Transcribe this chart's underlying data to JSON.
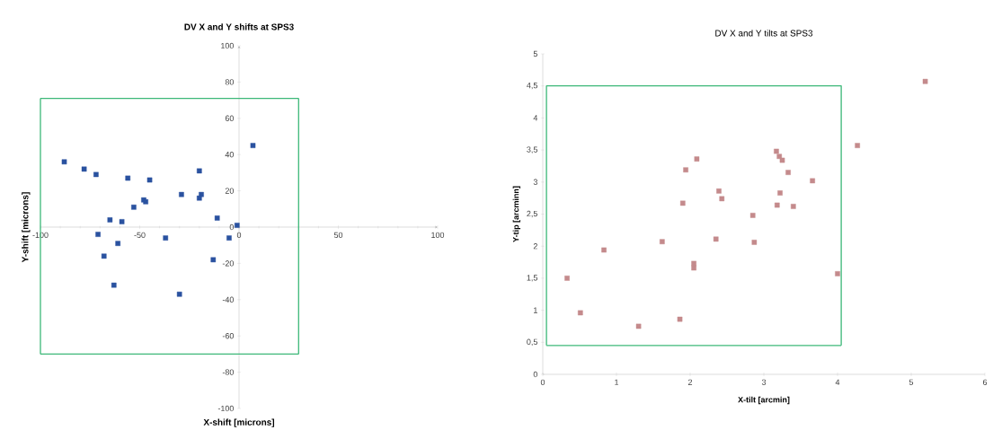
{
  "chart_data": [
    {
      "type": "scatter",
      "title": "DV X and Y shifts at SPS3",
      "xlabel": "X-shift  [microns]",
      "ylabel": "Y-shift  [microns]",
      "xlim": [
        -100,
        100
      ],
      "ylim": [
        -100,
        100
      ],
      "xticks": [
        -100,
        -50,
        0,
        50,
        100
      ],
      "yticks": [
        -100,
        -80,
        -60,
        -40,
        -20,
        0,
        20,
        40,
        60,
        80,
        100
      ],
      "series": [
        {
          "type": "scatter",
          "marker": "square",
          "color": "#2a52a0",
          "x": [
            -88,
            -78,
            -72,
            -56,
            -45,
            -48,
            -47,
            -53,
            -65,
            -59,
            -71,
            -61,
            -68,
            -63,
            -37,
            -29,
            -30,
            -20,
            -19,
            -20,
            -11,
            -5,
            -1,
            -13,
            7
          ],
          "values": [
            36,
            32,
            29,
            27,
            26,
            15,
            14,
            11,
            4,
            3,
            -4,
            -9,
            -16,
            -32,
            -6,
            18,
            -37,
            31,
            18,
            16,
            5,
            -6,
            1,
            -18,
            45
          ]
        },
        {
          "type": "line",
          "marker": "none",
          "line_style": "solid",
          "color": "#3cb878",
          "x": [
            -100,
            30
          ],
          "values": [
            71,
            71
          ]
        },
        {
          "type": "line",
          "marker": "none",
          "line_style": "solid",
          "color": "#3cb878",
          "x": [
            -100,
            30
          ],
          "values": [
            -70,
            -70
          ]
        },
        {
          "type": "line",
          "marker": "none",
          "line_style": "solid",
          "color": "#3cb878",
          "x": [
            -100,
            -100
          ],
          "values": [
            -70,
            71
          ]
        },
        {
          "type": "line",
          "marker": "none",
          "line_style": "solid",
          "color": "#3cb878",
          "x": [
            30,
            30
          ],
          "values": [
            -70,
            71
          ]
        }
      ]
    },
    {
      "type": "scatter",
      "title": "DV X and Y tilts at SPS3",
      "xlabel": "X-tilt  [arcmin]",
      "ylabel": "Y-tip  [arcminn]",
      "xlim": [
        0,
        6
      ],
      "ylim": [
        0,
        5
      ],
      "xticks": [
        0,
        1,
        2,
        3,
        4,
        5,
        6
      ],
      "yticks": [
        0,
        {
          "value": 0.5,
          "label": "0,5"
        },
        1,
        {
          "value": 1.5,
          "label": "1,5"
        },
        2,
        {
          "value": 2.5,
          "label": "2,5"
        },
        3,
        {
          "value": 3.5,
          "label": "3,5"
        },
        4,
        {
          "value": 4.5,
          "label": "4,5"
        },
        5
      ],
      "series": [
        {
          "type": "scatter",
          "marker": "square",
          "color": "#c48a8c",
          "x": [
            0.33,
            0.51,
            0.83,
            1.3,
            1.62,
            1.86,
            1.9,
            1.94,
            2.05,
            2.05,
            2.09,
            2.35,
            2.39,
            2.43,
            2.85,
            2.87,
            3.17,
            3.21,
            3.25,
            3.18,
            3.22,
            3.33,
            3.4,
            3.66,
            4.0,
            4.27,
            5.19
          ],
          "values": [
            1.5,
            0.96,
            1.94,
            0.75,
            2.07,
            0.86,
            2.67,
            3.19,
            1.73,
            1.66,
            3.36,
            2.11,
            2.86,
            2.74,
            2.48,
            2.06,
            3.48,
            3.4,
            3.34,
            2.64,
            2.83,
            3.15,
            2.62,
            3.02,
            1.57,
            3.57,
            4.57
          ]
        },
        {
          "type": "line",
          "marker": "none",
          "line_style": "solid",
          "color": "#3cb878",
          "x": [
            0.05,
            0.05,
            4.05,
            4.05
          ],
          "values": [
            0.45,
            4.5,
            4.5,
            0.45
          ]
        },
        {
          "type": "line",
          "marker": "none",
          "line_style": "solid",
          "color": "#3cb878",
          "x": [
            0.05,
            4.05
          ],
          "values": [
            0.45,
            0.45
          ]
        }
      ]
    }
  ]
}
